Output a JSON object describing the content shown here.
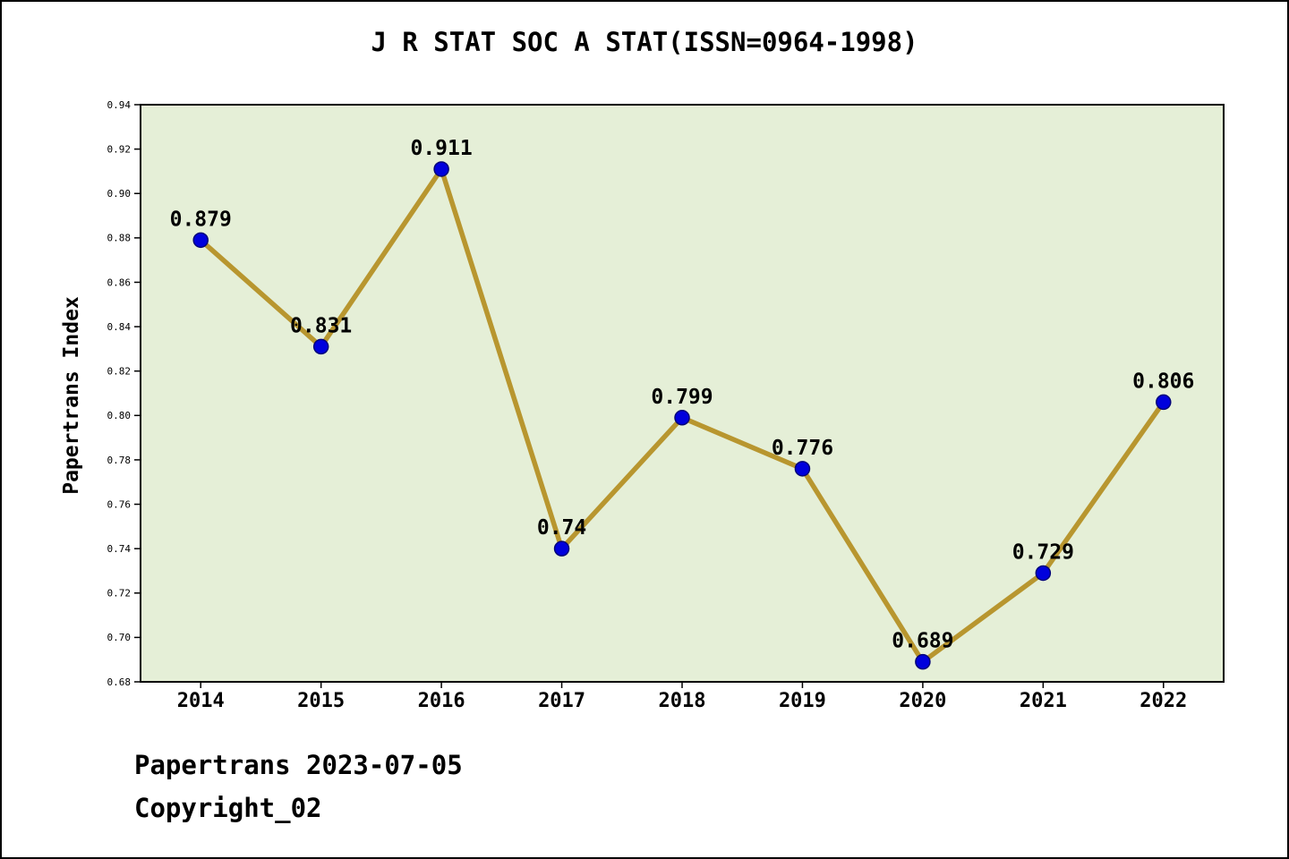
{
  "title": "J R STAT SOC A STAT(ISSN=0964-1998)",
  "y_axis_label": "Papertrans Index",
  "footer": {
    "line1": "Papertrans 2023-07-05",
    "line2": "Copyright_02"
  },
  "chart_data": {
    "type": "line",
    "title": "J R STAT SOC A STAT(ISSN=0964-1998)",
    "xlabel": "",
    "ylabel": "Papertrans Index",
    "categories": [
      "2014",
      "2015",
      "2016",
      "2017",
      "2018",
      "2019",
      "2020",
      "2021",
      "2022"
    ],
    "values": [
      0.879,
      0.831,
      0.911,
      0.74,
      0.799,
      0.776,
      0.689,
      0.729,
      0.806
    ],
    "point_labels": [
      "0.879",
      "0.831",
      "0.911",
      "0.74",
      "0.799",
      "0.776",
      "0.689",
      "0.729",
      "0.806"
    ],
    "ylim": [
      0.68,
      0.94
    ],
    "ytick_step": 0.02,
    "ytick_labels": [
      "0.68",
      "0.70",
      "0.72",
      "0.74",
      "0.76",
      "0.78",
      "0.80",
      "0.82",
      "0.84",
      "0.86",
      "0.88",
      "0.90",
      "0.92",
      "0.94"
    ],
    "grid": false,
    "legend": "none",
    "colors": {
      "line": "#b8962f",
      "marker": "#0000dd",
      "marker_edge": "#00007a",
      "plot_bg": "#e5efd7",
      "axis": "#000000",
      "text": "#000000"
    }
  }
}
